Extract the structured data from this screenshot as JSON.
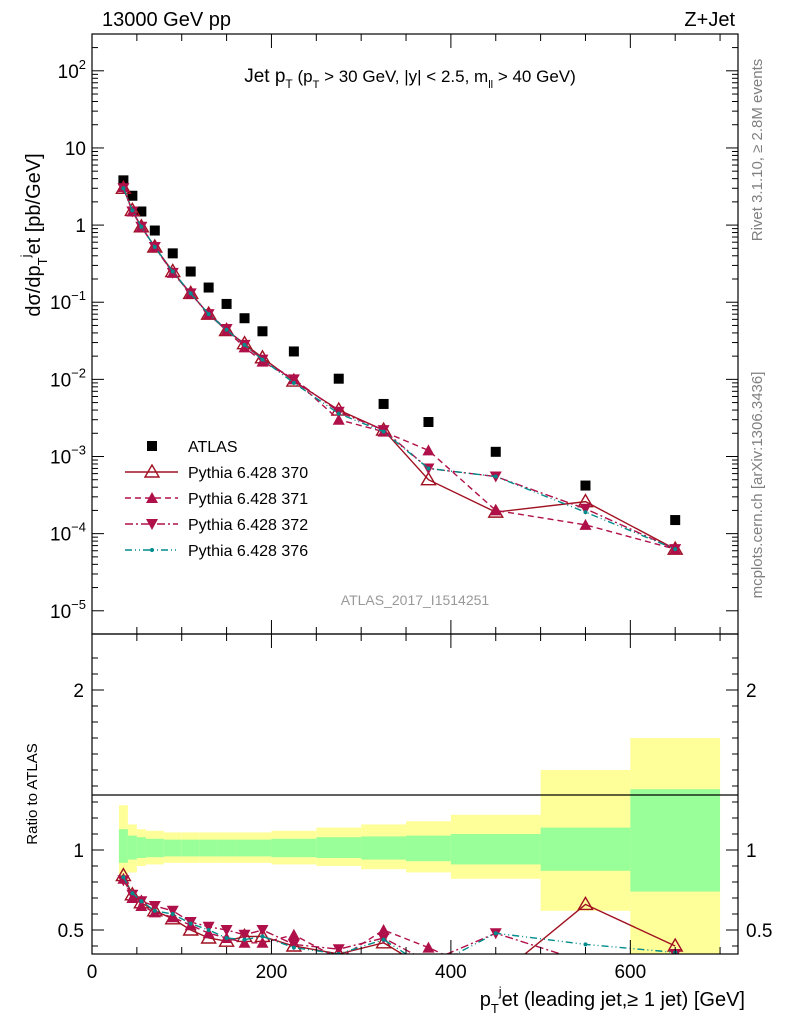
{
  "header": {
    "left": "13000 GeV pp",
    "right": "Z+Jet"
  },
  "side_labels": {
    "top": "Rivet 3.1.10, ≥ 2.8M events",
    "bottom": "mcplots.cern.ch [arXiv:1306.3436]"
  },
  "colors": {
    "atlas": "#000000",
    "p370": "#a01020",
    "p371": "#b0104a",
    "p372": "#b0104a",
    "p376": "#008c8c",
    "band_inner": "#99ff99",
    "band_outer": "#ffff99"
  },
  "chart_data": [
    {
      "type": "scatter",
      "title": {
        "main": "Jet p",
        "main_sub": "T",
        "cond_open": " (p",
        "cond_sub": "T",
        "cond_mid": " > 30 GeV, |y| < 2.5, m",
        "cond_sub2": "ll",
        "cond_close": " > 40 GeV)"
      },
      "ylabel": "dσ/dp_T^jet [pb/GeV]",
      "yscale": "log",
      "ylim": [
        5e-06,
        300
      ],
      "xlim": [
        0,
        720
      ],
      "watermark": "ATLAS_2017_I1514251",
      "legend_position": "middle-left",
      "y_ticks": [
        {
          "v": 1e-05,
          "mant": "10",
          "exp": "−5"
        },
        {
          "v": 0.0001,
          "mant": "10",
          "exp": "−4"
        },
        {
          "v": 0.001,
          "mant": "10",
          "exp": "−3"
        },
        {
          "v": 0.01,
          "mant": "10",
          "exp": "−2"
        },
        {
          "v": 0.1,
          "mant": "10",
          "exp": "−1"
        },
        {
          "v": 1,
          "mant": "1",
          "exp": ""
        },
        {
          "v": 10,
          "mant": "10",
          "exp": ""
        },
        {
          "v": 100,
          "mant": "10",
          "exp": "2"
        }
      ],
      "x": [
        35,
        45,
        55,
        70,
        90,
        110,
        130,
        150,
        170,
        190,
        225,
        275,
        325,
        375,
        450,
        550,
        650
      ],
      "series": [
        {
          "name": "ATLAS",
          "key": "atlas",
          "values": [
            3.8,
            2.4,
            1.5,
            0.85,
            0.43,
            0.25,
            0.155,
            0.095,
            0.062,
            0.042,
            0.023,
            0.0102,
            0.0048,
            0.0028,
            0.00115,
            0.00042,
            0.00015
          ]
        },
        {
          "name": "Pythia 6.428 370",
          "key": "p370",
          "values": [
            3.0,
            1.55,
            0.95,
            0.52,
            0.25,
            0.13,
            0.07,
            0.043,
            0.029,
            0.019,
            0.0095,
            0.004,
            0.0022,
            0.0005,
            0.00019,
            0.00026,
            6.3e-05
          ]
        },
        {
          "name": "Pythia 6.428 371",
          "key": "p371",
          "values": [
            3.1,
            1.5,
            0.95,
            0.52,
            0.24,
            0.13,
            0.07,
            0.043,
            0.026,
            0.017,
            0.01,
            0.003,
            0.0021,
            0.0012,
            0.0002,
            0.00013,
            6.3e-05
          ]
        },
        {
          "name": "Pythia 6.428 372",
          "key": "p372",
          "values": [
            3.0,
            1.5,
            0.95,
            0.52,
            0.24,
            0.13,
            0.07,
            0.045,
            0.028,
            0.018,
            0.01,
            0.0038,
            0.0022,
            0.0007,
            0.00055,
            0.00021,
            6.3e-05
          ]
        },
        {
          "name": "Pythia 6.428 376",
          "key": "p376",
          "values": [
            3.0,
            1.55,
            0.95,
            0.52,
            0.25,
            0.13,
            0.07,
            0.044,
            0.028,
            0.018,
            0.009,
            0.0036,
            0.0021,
            0.0007,
            0.00055,
            0.00019,
            6.3e-05
          ]
        }
      ]
    },
    {
      "type": "line",
      "ylabel": "Ratio to ATLAS",
      "ylim": [
        0.35,
        2.35
      ],
      "xlim": [
        0,
        720
      ],
      "xlabel": {
        "p": "p",
        "sub": "T",
        "sup": "j",
        "rest": "et (leading jet,≥ 1 jet) [GeV]"
      },
      "x_ticks": [
        "0",
        "200",
        "400",
        "600"
      ],
      "x_tick_values": [
        0,
        200,
        400,
        600
      ],
      "y_ticks": [
        "0.5",
        "1",
        "2"
      ],
      "y_tick_values": [
        0.5,
        1,
        2
      ],
      "bin_edges": [
        30,
        40,
        50,
        60,
        80,
        100,
        120,
        140,
        160,
        180,
        200,
        250,
        300,
        350,
        400,
        500,
        600,
        700
      ],
      "band_inner": [
        [
          0.92,
          1.13
        ],
        [
          0.94,
          1.09
        ],
        [
          0.95,
          1.08
        ],
        [
          0.955,
          1.07
        ],
        [
          0.96,
          1.065
        ],
        [
          0.96,
          1.065
        ],
        [
          0.96,
          1.065
        ],
        [
          0.96,
          1.065
        ],
        [
          0.96,
          1.065
        ],
        [
          0.96,
          1.065
        ],
        [
          0.955,
          1.07
        ],
        [
          0.95,
          1.08
        ],
        [
          0.94,
          1.085
        ],
        [
          0.93,
          1.09
        ],
        [
          0.91,
          1.1
        ],
        [
          0.87,
          1.14
        ],
        [
          0.74,
          1.38
        ]
      ],
      "band_outer": [
        [
          0.8,
          1.28
        ],
        [
          0.86,
          1.16
        ],
        [
          0.9,
          1.13
        ],
        [
          0.91,
          1.12
        ],
        [
          0.92,
          1.11
        ],
        [
          0.92,
          1.11
        ],
        [
          0.92,
          1.11
        ],
        [
          0.92,
          1.11
        ],
        [
          0.92,
          1.11
        ],
        [
          0.92,
          1.11
        ],
        [
          0.91,
          1.12
        ],
        [
          0.9,
          1.14
        ],
        [
          0.88,
          1.16
        ],
        [
          0.86,
          1.18
        ],
        [
          0.82,
          1.22
        ],
        [
          0.62,
          1.5
        ],
        [
          0.35,
          1.7
        ]
      ],
      "x": [
        35,
        45,
        55,
        70,
        90,
        110,
        130,
        150,
        170,
        190,
        225,
        275,
        325,
        375,
        450,
        550,
        650
      ],
      "series": [
        {
          "name": "Pythia 6.428 370",
          "key": "p370",
          "values": [
            0.84,
            0.72,
            0.67,
            0.62,
            0.57,
            0.5,
            0.45,
            0.43,
            0.46,
            0.46,
            0.4,
            0.35,
            0.42,
            0.25,
            0.2,
            0.66,
            0.4
          ]
        },
        {
          "name": "Pythia 6.428 371",
          "key": "p371",
          "values": [
            0.82,
            0.7,
            0.65,
            0.61,
            0.58,
            0.53,
            0.48,
            0.45,
            0.42,
            0.42,
            0.47,
            0.32,
            0.5,
            0.39,
            0.2,
            0.3,
            0.35
          ]
        },
        {
          "name": "Pythia 6.428 372",
          "key": "p372",
          "values": [
            0.81,
            0.72,
            0.68,
            0.65,
            0.62,
            0.55,
            0.52,
            0.5,
            0.47,
            0.5,
            0.41,
            0.38,
            0.45,
            0.3,
            0.48,
            0.3,
            0.35
          ]
        },
        {
          "name": "Pythia 6.428 376",
          "key": "p376",
          "values": [
            0.83,
            0.73,
            0.68,
            0.62,
            0.6,
            0.54,
            0.5,
            0.45,
            0.44,
            0.46,
            0.39,
            0.35,
            0.44,
            0.26,
            0.48,
            0.41,
            0.36
          ]
        }
      ]
    }
  ]
}
